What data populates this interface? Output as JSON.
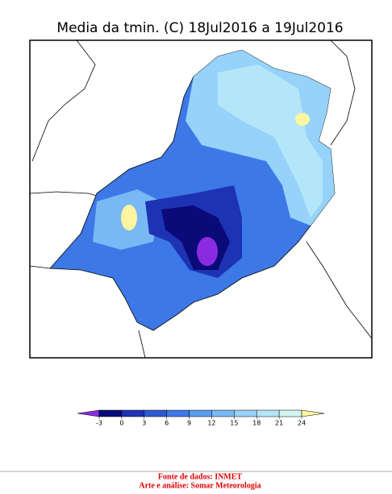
{
  "title": "Media da tmin. (C) 18Jul2016 a 19Jul2016",
  "colorbar": {
    "ticks": [
      -3,
      0,
      3,
      6,
      9,
      12,
      15,
      18,
      21,
      24
    ],
    "colors": [
      "#8a2be2",
      "#0a0a78",
      "#1e32b4",
      "#2d5ad2",
      "#3c78e6",
      "#5a9bf0",
      "#78b9f5",
      "#96d2fa",
      "#b4e6fa",
      "#d2f5f0",
      "#fff5a0"
    ]
  },
  "footer": {
    "source": "Fonte de dados: INMET",
    "credit": "Arte e análise: Somar Meteorologia"
  }
}
